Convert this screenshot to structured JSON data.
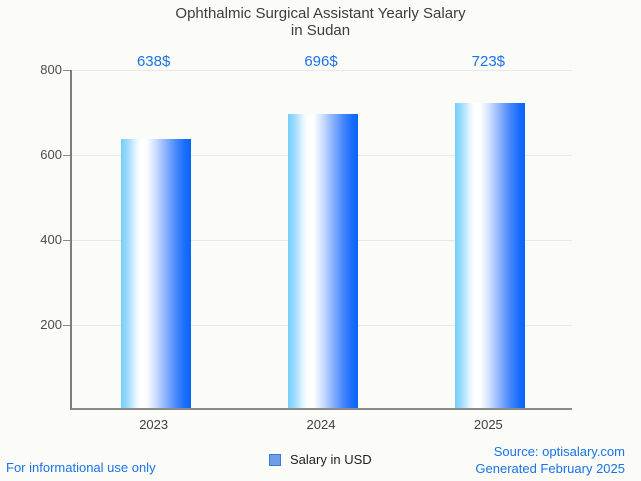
{
  "title": {
    "line1": "Ophthalmic Surgical Assistant Yearly Salary",
    "line2": "in Sudan"
  },
  "chart_data": {
    "type": "bar",
    "title": "Ophthalmic Surgical Assistant Yearly Salary in Sudan",
    "categories": [
      "2023",
      "2024",
      "2025"
    ],
    "series": [
      {
        "name": "Salary in USD",
        "values": [
          638,
          696,
          723
        ]
      }
    ],
    "value_labels": [
      "638$",
      "696$",
      "723$"
    ],
    "xlabel": "",
    "ylabel": "",
    "ylim": [
      0,
      800
    ],
    "yticks": [
      200,
      400,
      600,
      800
    ],
    "grid": true,
    "legend_position": "bottom",
    "bar_gradient": [
      "#74cefa",
      "#ffffff",
      "#0b64fa"
    ],
    "annotation_color": "#1a73e8"
  },
  "legend": {
    "label": "Salary in USD",
    "swatch_color": "#6d9eeb",
    "swatch_border": "#4176d4"
  },
  "footer": {
    "disclaimer": "For informational use only",
    "source": "Source: optisalary.com",
    "generated": "Generated February 2025"
  },
  "colors": {
    "accent_blue": "#1a73e8",
    "title_gray": "#3d3d3d",
    "background": "#fbfbf8"
  }
}
